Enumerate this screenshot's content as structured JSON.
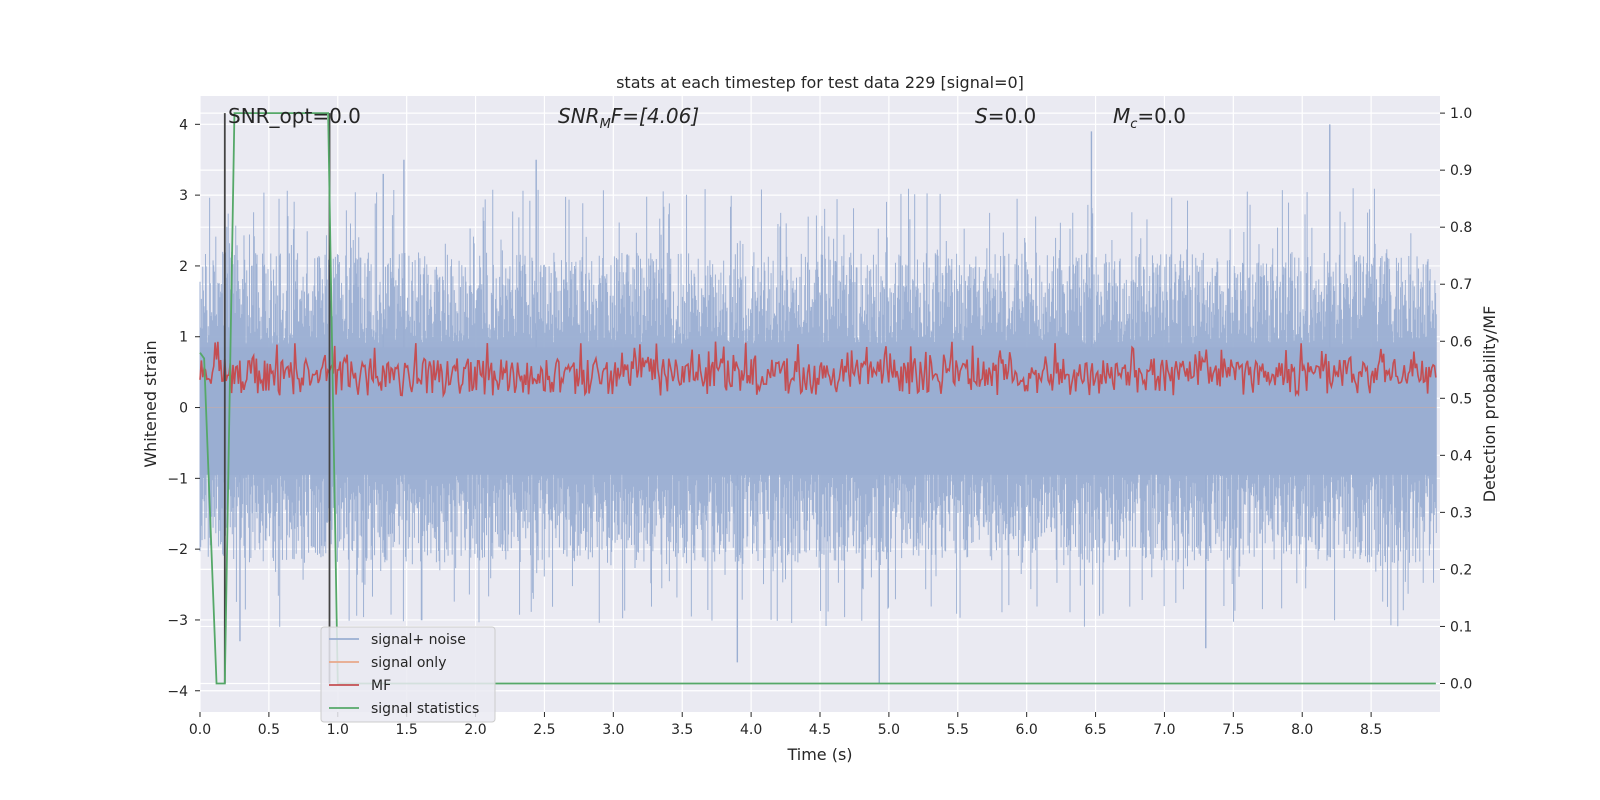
{
  "chart_data": {
    "type": "line",
    "title": "stats at each timestep for test data 229 [signal=0]",
    "xlabel": "Time (s)",
    "ylabel_left": "Whitened strain",
    "ylabel_right": "Detection probability/MF",
    "xlim": [
      0.0,
      9.0
    ],
    "ylim_left": [
      -4.3,
      4.4
    ],
    "ylim_right": [
      -0.05,
      1.03
    ],
    "xticks": [
      "0.0",
      "0.5",
      "1.0",
      "1.5",
      "2.0",
      "2.5",
      "3.0",
      "3.5",
      "4.0",
      "4.5",
      "5.0",
      "5.5",
      "6.0",
      "6.5",
      "7.0",
      "7.5",
      "8.0",
      "8.5"
    ],
    "yticks_left": [
      "−4",
      "−3",
      "−2",
      "−1",
      "0",
      "1",
      "2",
      "3",
      "4"
    ],
    "yticks_right": [
      "0.0",
      "0.1",
      "0.2",
      "0.3",
      "0.4",
      "0.5",
      "0.6",
      "0.7",
      "0.8",
      "0.9",
      "1.0"
    ],
    "grid": true,
    "background": "#eaeaf2",
    "annotations": {
      "snr_opt": "SNR_opt=0.0",
      "snr_mf_main": "SNR",
      "snr_mf_sub": "M",
      "snr_mf_rest": "F=[4.06]",
      "s_main": "S",
      "s_rest": "=0.0",
      "mc_main": "M",
      "mc_sub": "c",
      "mc_rest": "=0.0"
    },
    "legend": {
      "position": "lower-left",
      "entries": [
        {
          "label": "signal+ noise",
          "color": "#9aaed2"
        },
        {
          "label": "signal only",
          "color": "#e8a88a"
        },
        {
          "label": "MF",
          "color": "#c44e52"
        },
        {
          "label": "signal statistics",
          "color": "#55a868"
        }
      ]
    },
    "series": [
      {
        "name": "signal+ noise",
        "axis": "left",
        "color": "#9aaed2",
        "description_envelope": {
          "typical_upper": 2.0,
          "typical_lower": -2.0,
          "peak_upper": 4.0,
          "peak_lower": -3.9
        },
        "spikes": [
          {
            "x": 0.29,
            "y": -3.3
          },
          {
            "x": 1.33,
            "y": 3.3
          },
          {
            "x": 1.48,
            "y": 3.5
          },
          {
            "x": 2.44,
            "y": 3.5
          },
          {
            "x": 3.9,
            "y": -3.6
          },
          {
            "x": 4.93,
            "y": -3.9
          },
          {
            "x": 6.47,
            "y": 3.9
          },
          {
            "x": 7.3,
            "y": -3.4
          },
          {
            "x": 8.2,
            "y": 4.0
          }
        ]
      },
      {
        "name": "signal only",
        "axis": "left",
        "color": "#e8a88a",
        "values_constant": 0.0
      },
      {
        "name": "MF",
        "axis": "right",
        "color": "#c44e52",
        "typical_range": [
          0.505,
          0.6
        ],
        "peak": 0.61
      },
      {
        "name": "signal statistics",
        "axis": "right",
        "color": "#55a868",
        "x": [
          0.0,
          0.03,
          0.12,
          0.18,
          0.25,
          0.93,
          1.0,
          8.97
        ],
        "y": [
          0.58,
          0.57,
          0.0,
          0.0,
          1.0,
          1.0,
          0.0,
          0.0
        ]
      },
      {
        "name": "",
        "axis": "right",
        "color": "#444444",
        "x": [
          0.18,
          0.18
        ],
        "y": [
          0.0,
          1.0
        ]
      },
      {
        "name": "",
        "axis": "right",
        "color": "#444444",
        "x": [
          0.94,
          0.94
        ],
        "y": [
          0.0,
          1.0
        ]
      }
    ]
  }
}
